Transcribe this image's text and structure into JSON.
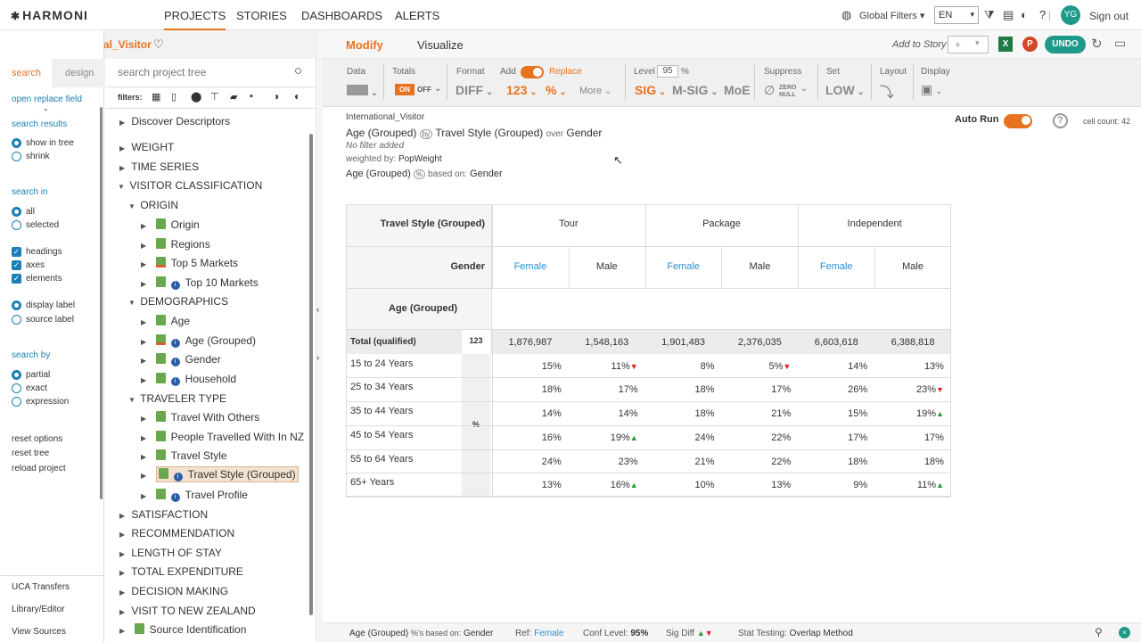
{
  "header": {
    "logo": "HARMONI",
    "nav": [
      "PROJECTS",
      "STORIES",
      "DASHBOARDS",
      "ALERTS"
    ],
    "global_filters": "Global Filters",
    "language": "EN",
    "avatar": "YG",
    "sign_out": "Sign out"
  },
  "project": {
    "name": "International_Visitor"
  },
  "left": {
    "tabs": [
      "search",
      "design"
    ],
    "search_placeholder": "search project tree",
    "filters_label": "filters:",
    "open_replace": "open replace field",
    "search_results": "search results",
    "show_in_tree": "show in tree",
    "shrink": "shrink",
    "search_in": "search in",
    "all": "all",
    "selected": "selected",
    "headings": "headings",
    "axes": "axes",
    "elements": "elements",
    "display_label": "display label",
    "source_label": "source label",
    "search_by": "search by",
    "partial": "partial",
    "exact": "exact",
    "expression": "expression",
    "reset_options": "reset options",
    "reset_tree": "reset tree",
    "reload_project": "reload project",
    "uca": "UCA Transfers",
    "library": "Library/Editor",
    "view_sources": "View Sources"
  },
  "tree": [
    "Discover Descriptors",
    "WEIGHT",
    "TIME SERIES",
    "VISITOR CLASSIFICATION",
    "ORIGIN",
    "Origin",
    "Regions",
    "Top 5 Markets",
    "Top 10 Markets",
    "DEMOGRAPHICS",
    "Age",
    "Age (Grouped)",
    "Gender",
    "Household",
    "TRAVELER TYPE",
    "Travel With Others",
    "People Travelled With In NZ",
    "Travel Style",
    "Travel Style (Grouped)",
    "Travel Profile",
    "SATISFACTION",
    "RECOMMENDATION",
    "LENGTH OF STAY",
    "TOTAL EXPENDITURE",
    "DECISION MAKING",
    "VISIT TO NEW ZEALAND",
    "Source Identification"
  ],
  "modbar": {
    "modify": "Modify",
    "visualize": "Visualize",
    "add_to_story": "Add to Story",
    "undo": "UNDO"
  },
  "toolbar": {
    "data": "Data",
    "totals": "Totals",
    "format": "Format",
    "add": "Add",
    "replace": "Replace",
    "level": "Level",
    "level_value": "95",
    "percent": "%",
    "suppress": "Suppress",
    "set": "Set",
    "layout": "Layout",
    "display": "Display",
    "on": "ON",
    "off": "OFF",
    "diff": "DIFF",
    "num": "123",
    "pct": "%",
    "more": "More",
    "sig": "SIG",
    "msig": "M-SIG",
    "moe": "MoE",
    "zero": "ZERO",
    "null": "NULL",
    "low": "LOW"
  },
  "info": {
    "project": "International_Visitor",
    "row_var": "Age (Grouped)",
    "col_var": "Travel Style (Grouped)",
    "over": "over",
    "over_var": "Gender",
    "no_filter": "No filter added",
    "weighted_by": "weighted by:",
    "weight": "PopWeight",
    "based_row": "Age (Grouped)",
    "based_on": "based on:",
    "based_var": "Gender",
    "auto_run": "Auto Run",
    "cell_count": "cell count: 42"
  },
  "table": {
    "col_header_label": "Travel Style (Grouped)",
    "groups": [
      "Tour",
      "Package",
      "Independent"
    ],
    "gender_label": "Gender",
    "genders": [
      "Female",
      "Male",
      "Female",
      "Male",
      "Female",
      "Male"
    ],
    "row_header_label": "Age (Grouped)",
    "total_label": "Total (qualified)",
    "total_unit": "123",
    "pct_unit": "%",
    "totals": [
      "1,876,987",
      "1,548,163",
      "1,901,483",
      "2,376,035",
      "6,603,618",
      "6,388,818"
    ],
    "rows": [
      {
        "label": "15 to 24 Years",
        "values": [
          "15%",
          "11%",
          "8%",
          "5%",
          "14%",
          "13%"
        ],
        "sig": [
          "",
          "down",
          "",
          "down",
          "",
          ""
        ]
      },
      {
        "label": "25 to 34 Years",
        "values": [
          "18%",
          "17%",
          "18%",
          "17%",
          "26%",
          "23%"
        ],
        "sig": [
          "",
          "",
          "",
          "",
          "",
          "down"
        ]
      },
      {
        "label": "35 to 44 Years",
        "values": [
          "14%",
          "14%",
          "18%",
          "21%",
          "15%",
          "19%"
        ],
        "sig": [
          "",
          "",
          "",
          "",
          "",
          "up"
        ]
      },
      {
        "label": "45 to 54 Years",
        "values": [
          "16%",
          "19%",
          "24%",
          "22%",
          "17%",
          "17%"
        ],
        "sig": [
          "",
          "up",
          "",
          "",
          "",
          ""
        ]
      },
      {
        "label": "55 to 64 Years",
        "values": [
          "24%",
          "23%",
          "21%",
          "22%",
          "18%",
          "18%"
        ],
        "sig": [
          "",
          "",
          "",
          "",
          "",
          ""
        ]
      },
      {
        "label": "65+ Years",
        "values": [
          "13%",
          "16%",
          "10%",
          "13%",
          "9%",
          "11%"
        ],
        "sig": [
          "",
          "up",
          "",
          "",
          "",
          "up"
        ]
      }
    ]
  },
  "statusbar": {
    "row_var": "Age (Grouped)",
    "based": "%'s based on:",
    "based_var": "Gender",
    "ref_label": "Ref:",
    "ref": "Female",
    "conf_label": "Conf Level:",
    "conf": "95%",
    "sig_label": "Sig Diff",
    "stat_label": "Stat Testing:",
    "stat": "Overlap Method"
  }
}
